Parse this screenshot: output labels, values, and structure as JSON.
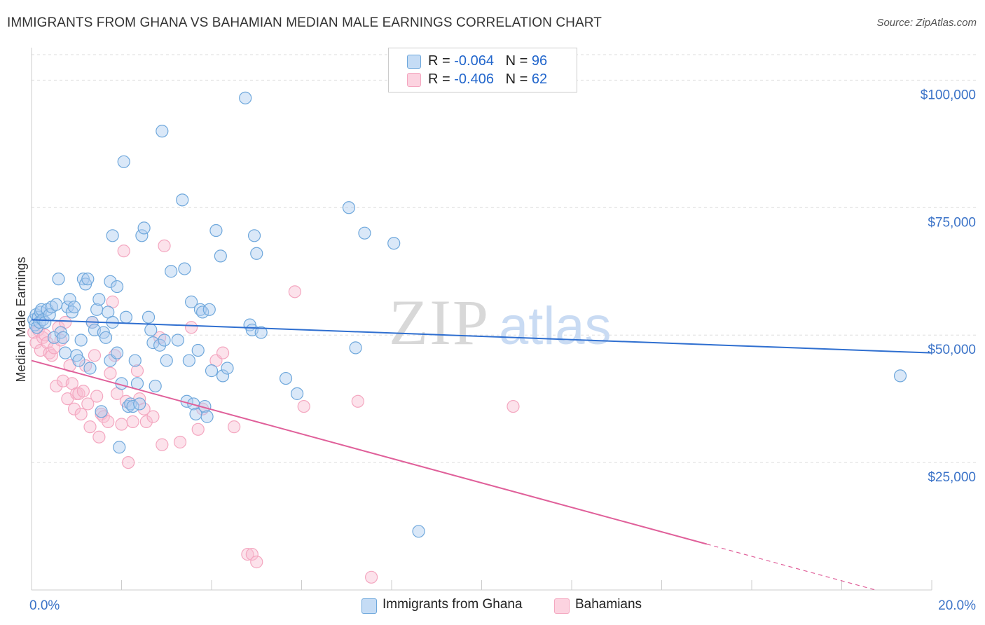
{
  "title": "IMMIGRANTS FROM GHANA VS BAHAMIAN MEDIAN MALE EARNINGS CORRELATION CHART",
  "source": "Source: ZipAtlas.com",
  "watermark": {
    "zip": "ZIP",
    "atlas": "atlas"
  },
  "legend": {
    "r_label": "R = ",
    "n_label": "N = ",
    "rows": [
      {
        "r": "-0.064",
        "n": "96",
        "color": "#6fa8dc"
      },
      {
        "r": "-0.406",
        "n": "62",
        "color": "#f4a7c0"
      }
    ]
  },
  "chart_data": {
    "type": "scatter",
    "title": "IMMIGRANTS FROM GHANA VS BAHAMIAN MEDIAN MALE EARNINGS CORRELATION CHART",
    "xlabel": "",
    "ylabel": "Median Male Earnings",
    "xlim": [
      0,
      20
    ],
    "ylim": [
      0,
      105000
    ],
    "x_tick_labels": [
      "0.0%",
      "20.0%"
    ],
    "y_ticks": [
      25000,
      50000,
      75000,
      100000
    ],
    "y_tick_labels": [
      "$25,000",
      "$50,000",
      "$75,000",
      "$100,000"
    ],
    "grid": true,
    "legend_position": "top-center",
    "series": [
      {
        "name": "Immigrants from Ghana",
        "color": "#6fa8dc",
        "line_color": "#2f6fd0",
        "trend": {
          "x0": 0,
          "y0": 53000,
          "x1": 20,
          "y1": 46500,
          "dashed_from": null
        },
        "points": [
          [
            0.05,
            53000
          ],
          [
            0.08,
            52000
          ],
          [
            0.1,
            54000
          ],
          [
            0.12,
            51500
          ],
          [
            0.15,
            53500
          ],
          [
            0.18,
            52500
          ],
          [
            0.2,
            54500
          ],
          [
            0.22,
            55000
          ],
          [
            0.25,
            53000
          ],
          [
            0.3,
            52500
          ],
          [
            0.35,
            55000
          ],
          [
            0.4,
            54000
          ],
          [
            0.45,
            55500
          ],
          [
            0.5,
            49500
          ],
          [
            0.55,
            56000
          ],
          [
            0.6,
            61000
          ],
          [
            0.65,
            50500
          ],
          [
            0.7,
            49500
          ],
          [
            0.75,
            46500
          ],
          [
            0.8,
            55500
          ],
          [
            0.85,
            57000
          ],
          [
            0.9,
            54500
          ],
          [
            0.95,
            55500
          ],
          [
            1.0,
            46000
          ],
          [
            1.05,
            45000
          ],
          [
            1.1,
            49000
          ],
          [
            1.15,
            61000
          ],
          [
            1.2,
            60000
          ],
          [
            1.25,
            61000
          ],
          [
            1.3,
            43500
          ],
          [
            1.35,
            52500
          ],
          [
            1.4,
            51000
          ],
          [
            1.45,
            55000
          ],
          [
            1.5,
            57000
          ],
          [
            1.55,
            35000
          ],
          [
            1.6,
            50500
          ],
          [
            1.65,
            49500
          ],
          [
            1.7,
            54500
          ],
          [
            1.75,
            45000
          ],
          [
            1.8,
            52500
          ],
          [
            1.75,
            60500
          ],
          [
            1.8,
            69500
          ],
          [
            1.9,
            59500
          ],
          [
            1.9,
            46500
          ],
          [
            1.95,
            28000
          ],
          [
            2.0,
            40500
          ],
          [
            2.05,
            84000
          ],
          [
            2.1,
            53500
          ],
          [
            2.15,
            36000
          ],
          [
            2.2,
            36500
          ],
          [
            2.25,
            36000
          ],
          [
            2.3,
            45000
          ],
          [
            2.35,
            40500
          ],
          [
            2.4,
            36500
          ],
          [
            2.45,
            69500
          ],
          [
            2.5,
            71000
          ],
          [
            2.6,
            53500
          ],
          [
            2.65,
            51000
          ],
          [
            2.7,
            48500
          ],
          [
            2.75,
            40000
          ],
          [
            2.85,
            48000
          ],
          [
            2.9,
            90000
          ],
          [
            2.95,
            49000
          ],
          [
            3.0,
            45000
          ],
          [
            3.1,
            62500
          ],
          [
            3.25,
            49000
          ],
          [
            3.35,
            76500
          ],
          [
            3.4,
            63000
          ],
          [
            3.45,
            37000
          ],
          [
            3.5,
            45000
          ],
          [
            3.55,
            56500
          ],
          [
            3.6,
            36500
          ],
          [
            3.65,
            34500
          ],
          [
            3.7,
            47000
          ],
          [
            3.75,
            55000
          ],
          [
            3.8,
            54500
          ],
          [
            3.85,
            36000
          ],
          [
            3.9,
            34000
          ],
          [
            3.95,
            55000
          ],
          [
            4.0,
            43000
          ],
          [
            4.1,
            70500
          ],
          [
            4.2,
            65500
          ],
          [
            4.25,
            42000
          ],
          [
            4.35,
            43500
          ],
          [
            4.75,
            96500
          ],
          [
            4.85,
            52000
          ],
          [
            4.9,
            51000
          ],
          [
            4.95,
            69500
          ],
          [
            5.0,
            66000
          ],
          [
            5.1,
            50500
          ],
          [
            5.65,
            41500
          ],
          [
            5.9,
            38500
          ],
          [
            7.05,
            75000
          ],
          [
            7.2,
            47500
          ],
          [
            7.4,
            70000
          ],
          [
            8.05,
            68000
          ],
          [
            8.6,
            11500
          ],
          [
            19.3,
            42000
          ]
        ]
      },
      {
        "name": "Bahamians",
        "color": "#f4a7c0",
        "line_color": "#e0609a",
        "trend": {
          "x0": 0,
          "y0": 45000,
          "x1": 20,
          "y1": -3000,
          "dashed_from": 15
        },
        "points": [
          [
            0.05,
            50500
          ],
          [
            0.1,
            48500
          ],
          [
            0.15,
            51000
          ],
          [
            0.2,
            47000
          ],
          [
            0.25,
            49500
          ],
          [
            0.3,
            50000
          ],
          [
            0.35,
            48500
          ],
          [
            0.4,
            46500
          ],
          [
            0.45,
            46000
          ],
          [
            0.5,
            47500
          ],
          [
            0.55,
            40000
          ],
          [
            0.6,
            51500
          ],
          [
            0.65,
            49000
          ],
          [
            0.7,
            41000
          ],
          [
            0.75,
            52500
          ],
          [
            0.8,
            37500
          ],
          [
            0.85,
            44000
          ],
          [
            0.9,
            40500
          ],
          [
            0.95,
            35500
          ],
          [
            1.0,
            38500
          ],
          [
            1.05,
            38500
          ],
          [
            1.1,
            34500
          ],
          [
            1.15,
            39000
          ],
          [
            1.2,
            44000
          ],
          [
            1.25,
            36500
          ],
          [
            1.3,
            32000
          ],
          [
            1.35,
            52500
          ],
          [
            1.4,
            46000
          ],
          [
            1.45,
            38000
          ],
          [
            1.5,
            30000
          ],
          [
            1.55,
            34500
          ],
          [
            1.6,
            34000
          ],
          [
            1.7,
            33000
          ],
          [
            1.75,
            42500
          ],
          [
            1.8,
            56500
          ],
          [
            1.85,
            46000
          ],
          [
            1.9,
            38500
          ],
          [
            2.0,
            32500
          ],
          [
            2.05,
            66500
          ],
          [
            2.1,
            37000
          ],
          [
            2.15,
            25000
          ],
          [
            2.25,
            33000
          ],
          [
            2.35,
            43000
          ],
          [
            2.4,
            37500
          ],
          [
            2.5,
            35500
          ],
          [
            2.55,
            33000
          ],
          [
            2.7,
            34000
          ],
          [
            2.85,
            49500
          ],
          [
            2.9,
            28500
          ],
          [
            2.95,
            67500
          ],
          [
            3.3,
            29000
          ],
          [
            3.55,
            51500
          ],
          [
            3.7,
            31500
          ],
          [
            3.8,
            35500
          ],
          [
            4.1,
            45000
          ],
          [
            4.25,
            46500
          ],
          [
            4.5,
            32000
          ],
          [
            4.8,
            7000
          ],
          [
            4.9,
            7000
          ],
          [
            5.0,
            5500
          ],
          [
            5.85,
            58500
          ],
          [
            6.05,
            36000
          ],
          [
            7.25,
            37000
          ],
          [
            7.55,
            2500
          ],
          [
            10.7,
            36000
          ]
        ]
      }
    ]
  }
}
